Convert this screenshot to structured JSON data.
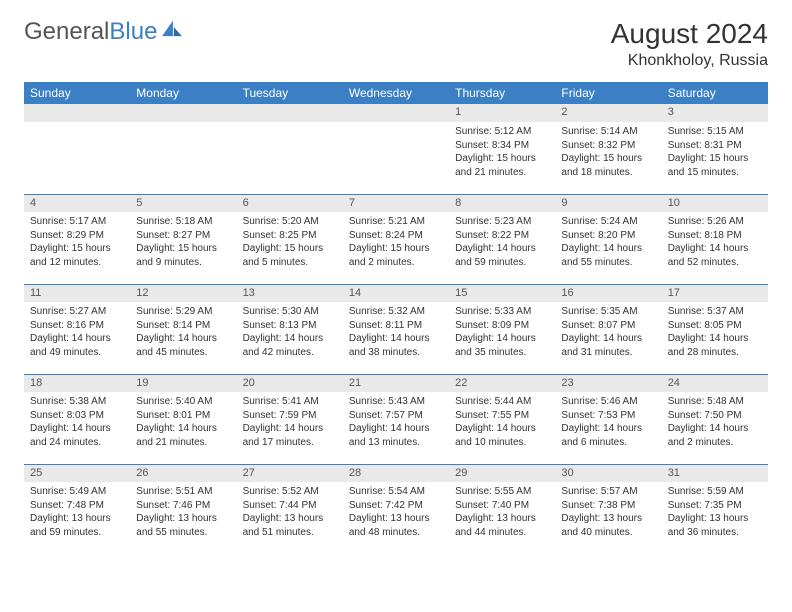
{
  "brand": {
    "name_part1": "General",
    "name_part2": "Blue"
  },
  "title": "August 2024",
  "location": "Khonkholoy, Russia",
  "colors": {
    "header_bg": "#3b7fc4",
    "header_text": "#ffffff",
    "daynum_bg": "#e9e9e9",
    "cell_border": "#3b7fc4",
    "body_text": "#333333",
    "logo_gray": "#555555",
    "logo_blue": "#3b7fc4",
    "page_bg": "#ffffff"
  },
  "typography": {
    "title_size_pt": 21,
    "location_size_pt": 12,
    "header_size_pt": 9,
    "cell_size_pt": 7.5
  },
  "weekdays": [
    "Sunday",
    "Monday",
    "Tuesday",
    "Wednesday",
    "Thursday",
    "Friday",
    "Saturday"
  ],
  "weeks": [
    [
      null,
      null,
      null,
      null,
      {
        "n": "1",
        "sr": "5:12 AM",
        "ss": "8:34 PM",
        "dl": "15 hours and 21 minutes."
      },
      {
        "n": "2",
        "sr": "5:14 AM",
        "ss": "8:32 PM",
        "dl": "15 hours and 18 minutes."
      },
      {
        "n": "3",
        "sr": "5:15 AM",
        "ss": "8:31 PM",
        "dl": "15 hours and 15 minutes."
      }
    ],
    [
      {
        "n": "4",
        "sr": "5:17 AM",
        "ss": "8:29 PM",
        "dl": "15 hours and 12 minutes."
      },
      {
        "n": "5",
        "sr": "5:18 AM",
        "ss": "8:27 PM",
        "dl": "15 hours and 9 minutes."
      },
      {
        "n": "6",
        "sr": "5:20 AM",
        "ss": "8:25 PM",
        "dl": "15 hours and 5 minutes."
      },
      {
        "n": "7",
        "sr": "5:21 AM",
        "ss": "8:24 PM",
        "dl": "15 hours and 2 minutes."
      },
      {
        "n": "8",
        "sr": "5:23 AM",
        "ss": "8:22 PM",
        "dl": "14 hours and 59 minutes."
      },
      {
        "n": "9",
        "sr": "5:24 AM",
        "ss": "8:20 PM",
        "dl": "14 hours and 55 minutes."
      },
      {
        "n": "10",
        "sr": "5:26 AM",
        "ss": "8:18 PM",
        "dl": "14 hours and 52 minutes."
      }
    ],
    [
      {
        "n": "11",
        "sr": "5:27 AM",
        "ss": "8:16 PM",
        "dl": "14 hours and 49 minutes."
      },
      {
        "n": "12",
        "sr": "5:29 AM",
        "ss": "8:14 PM",
        "dl": "14 hours and 45 minutes."
      },
      {
        "n": "13",
        "sr": "5:30 AM",
        "ss": "8:13 PM",
        "dl": "14 hours and 42 minutes."
      },
      {
        "n": "14",
        "sr": "5:32 AM",
        "ss": "8:11 PM",
        "dl": "14 hours and 38 minutes."
      },
      {
        "n": "15",
        "sr": "5:33 AM",
        "ss": "8:09 PM",
        "dl": "14 hours and 35 minutes."
      },
      {
        "n": "16",
        "sr": "5:35 AM",
        "ss": "8:07 PM",
        "dl": "14 hours and 31 minutes."
      },
      {
        "n": "17",
        "sr": "5:37 AM",
        "ss": "8:05 PM",
        "dl": "14 hours and 28 minutes."
      }
    ],
    [
      {
        "n": "18",
        "sr": "5:38 AM",
        "ss": "8:03 PM",
        "dl": "14 hours and 24 minutes."
      },
      {
        "n": "19",
        "sr": "5:40 AM",
        "ss": "8:01 PM",
        "dl": "14 hours and 21 minutes."
      },
      {
        "n": "20",
        "sr": "5:41 AM",
        "ss": "7:59 PM",
        "dl": "14 hours and 17 minutes."
      },
      {
        "n": "21",
        "sr": "5:43 AM",
        "ss": "7:57 PM",
        "dl": "14 hours and 13 minutes."
      },
      {
        "n": "22",
        "sr": "5:44 AM",
        "ss": "7:55 PM",
        "dl": "14 hours and 10 minutes."
      },
      {
        "n": "23",
        "sr": "5:46 AM",
        "ss": "7:53 PM",
        "dl": "14 hours and 6 minutes."
      },
      {
        "n": "24",
        "sr": "5:48 AM",
        "ss": "7:50 PM",
        "dl": "14 hours and 2 minutes."
      }
    ],
    [
      {
        "n": "25",
        "sr": "5:49 AM",
        "ss": "7:48 PM",
        "dl": "13 hours and 59 minutes."
      },
      {
        "n": "26",
        "sr": "5:51 AM",
        "ss": "7:46 PM",
        "dl": "13 hours and 55 minutes."
      },
      {
        "n": "27",
        "sr": "5:52 AM",
        "ss": "7:44 PM",
        "dl": "13 hours and 51 minutes."
      },
      {
        "n": "28",
        "sr": "5:54 AM",
        "ss": "7:42 PM",
        "dl": "13 hours and 48 minutes."
      },
      {
        "n": "29",
        "sr": "5:55 AM",
        "ss": "7:40 PM",
        "dl": "13 hours and 44 minutes."
      },
      {
        "n": "30",
        "sr": "5:57 AM",
        "ss": "7:38 PM",
        "dl": "13 hours and 40 minutes."
      },
      {
        "n": "31",
        "sr": "5:59 AM",
        "ss": "7:35 PM",
        "dl": "13 hours and 36 minutes."
      }
    ]
  ],
  "labels": {
    "sunrise": "Sunrise:",
    "sunset": "Sunset:",
    "daylight": "Daylight:"
  }
}
